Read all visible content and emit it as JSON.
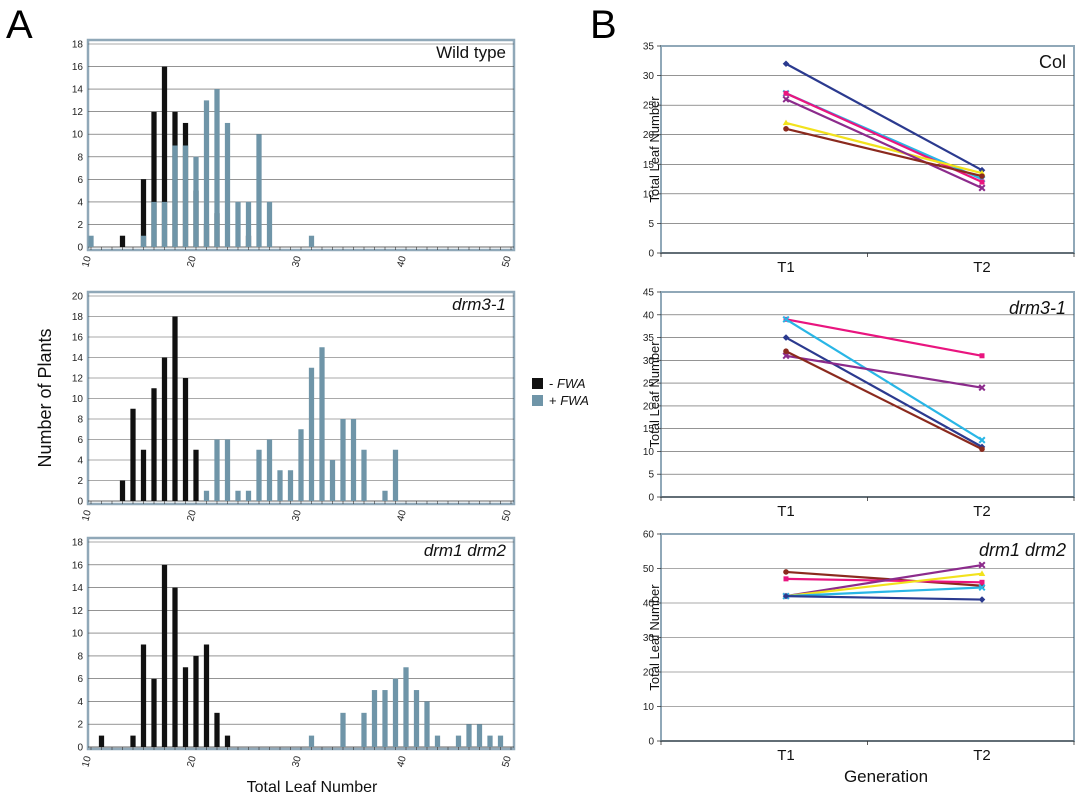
{
  "labels": {
    "panel_a": "A",
    "panel_b": "B",
    "a_ylabel": "Number of Plants",
    "a_xlabel": "Total Leaf Number",
    "b_ylabel": "Total Leaf Number",
    "b_xlabel": "Generation"
  },
  "legend": [
    {
      "sign": "- ",
      "text": "FWA",
      "color": "#111111"
    },
    {
      "sign": "+ ",
      "text": "FWA",
      "color": "#6f95a8"
    }
  ],
  "colors": {
    "minus_fwa": "#111111",
    "plus_fwa": "#6f95a8",
    "frame": "#90a8b8",
    "grid": "#555555"
  },
  "chart_data": [
    {
      "type": "bar",
      "title": "Wild type",
      "title_italic": false,
      "xlim": [
        10,
        50
      ],
      "xticks": [
        10,
        20,
        30,
        40,
        50
      ],
      "ylim": [
        0,
        18
      ],
      "yticks": [
        0,
        2,
        4,
        6,
        8,
        10,
        12,
        14,
        16,
        18
      ],
      "series": [
        {
          "name": "- FWA",
          "color": "#111111",
          "x": [
            13,
            15,
            16,
            17,
            18,
            19,
            20,
            21,
            22,
            25
          ],
          "values": [
            1,
            6,
            12,
            16,
            12,
            11,
            5,
            2,
            3,
            1
          ]
        },
        {
          "name": "+ FWA",
          "color": "#6f95a8",
          "x": [
            10,
            15,
            16,
            17,
            18,
            19,
            20,
            21,
            22,
            23,
            24,
            25,
            26,
            27,
            31
          ],
          "values": [
            1,
            1,
            4,
            4,
            9,
            9,
            8,
            13,
            14,
            11,
            4,
            4,
            10,
            4,
            1
          ]
        }
      ]
    },
    {
      "type": "bar",
      "title": "drm3-1",
      "title_italic": true,
      "xlim": [
        10,
        50
      ],
      "xticks": [
        10,
        20,
        30,
        40,
        50
      ],
      "ylim": [
        0,
        20
      ],
      "yticks": [
        0,
        2,
        4,
        6,
        8,
        10,
        12,
        14,
        16,
        18,
        20
      ],
      "series": [
        {
          "name": "- FWA",
          "color": "#111111",
          "x": [
            13,
            14,
            15,
            16,
            17,
            18,
            19,
            20
          ],
          "values": [
            2,
            9,
            5,
            11,
            14,
            18,
            12,
            5
          ]
        },
        {
          "name": "+ FWA",
          "color": "#6f95a8",
          "x": [
            21,
            22,
            23,
            24,
            25,
            26,
            27,
            28,
            29,
            30,
            31,
            32,
            33,
            34,
            35,
            36,
            37,
            38,
            39
          ],
          "values": [
            1,
            6,
            6,
            1,
            1,
            5,
            6,
            3,
            3,
            7,
            13,
            15,
            4,
            8,
            8,
            5,
            0,
            1,
            5
          ]
        }
      ]
    },
    {
      "type": "bar",
      "title": "drm1 drm2",
      "title_italic": true,
      "xlim": [
        10,
        50
      ],
      "xticks": [
        10,
        20,
        30,
        40,
        50
      ],
      "ylim": [
        0,
        18
      ],
      "yticks": [
        0,
        2,
        4,
        6,
        8,
        10,
        12,
        14,
        16,
        18
      ],
      "series": [
        {
          "name": "- FWA",
          "color": "#111111",
          "x": [
            11,
            14,
            15,
            16,
            17,
            18,
            19,
            20,
            21,
            22,
            23
          ],
          "values": [
            1,
            1,
            9,
            6,
            16,
            14,
            7,
            8,
            9,
            3,
            1
          ]
        },
        {
          "name": "+ FWA",
          "color": "#6f95a8",
          "x": [
            31,
            34,
            36,
            37,
            38,
            39,
            40,
            41,
            42,
            43,
            45,
            46,
            47,
            48,
            49
          ],
          "values": [
            1,
            3,
            3,
            5,
            5,
            6,
            7,
            5,
            4,
            1,
            1,
            2,
            2,
            1,
            1
          ]
        }
      ]
    },
    {
      "type": "line",
      "title": "Col",
      "title_italic": false,
      "categories": [
        "T1",
        "T2"
      ],
      "ylim": [
        0,
        35
      ],
      "yticks": [
        0,
        5,
        10,
        15,
        20,
        25,
        30,
        35
      ],
      "series": [
        {
          "color": "#2b3a8f",
          "marker": "diamond",
          "values": [
            32,
            14
          ]
        },
        {
          "color": "#29b6e6",
          "marker": "x",
          "values": [
            27,
            12.5
          ]
        },
        {
          "color": "#e9157f",
          "marker": "square",
          "values": [
            27,
            12
          ]
        },
        {
          "color": "#f2e21c",
          "marker": "triangle",
          "values": [
            22,
            13.5
          ]
        },
        {
          "color": "#8c2b8c",
          "marker": "x",
          "values": [
            26,
            11
          ]
        },
        {
          "color": "#8b2a1e",
          "marker": "circle",
          "values": [
            21,
            13
          ]
        }
      ]
    },
    {
      "type": "line",
      "title": "drm3-1",
      "title_italic": true,
      "categories": [
        "T1",
        "T2"
      ],
      "ylim": [
        0,
        45
      ],
      "yticks": [
        0,
        5,
        10,
        15,
        20,
        25,
        30,
        35,
        40,
        45
      ],
      "series": [
        {
          "color": "#e9157f",
          "marker": "square",
          "values": [
            39,
            31
          ]
        },
        {
          "color": "#29b6e6",
          "marker": "x",
          "values": [
            39,
            12.5
          ]
        },
        {
          "color": "#2b3a8f",
          "marker": "diamond",
          "values": [
            35,
            11
          ]
        },
        {
          "color": "#8c2b8c",
          "marker": "x",
          "values": [
            31,
            24
          ]
        },
        {
          "color": "#8b2a1e",
          "marker": "circle",
          "values": [
            32,
            10.5
          ]
        }
      ]
    },
    {
      "type": "line",
      "title": "drm1 drm2",
      "title_italic": true,
      "categories": [
        "T1",
        "T2"
      ],
      "ylim": [
        0,
        60
      ],
      "yticks": [
        0,
        10,
        20,
        30,
        40,
        50,
        60
      ],
      "series": [
        {
          "color": "#8b2a1e",
          "marker": "circle",
          "values": [
            49,
            45
          ]
        },
        {
          "color": "#e9157f",
          "marker": "square",
          "values": [
            47,
            46
          ]
        },
        {
          "color": "#8c2b8c",
          "marker": "x",
          "values": [
            42,
            51
          ]
        },
        {
          "color": "#f2e21c",
          "marker": "triangle",
          "values": [
            42,
            48.5
          ]
        },
        {
          "color": "#29b6e6",
          "marker": "x",
          "values": [
            42,
            44.5
          ]
        },
        {
          "color": "#2b3a8f",
          "marker": "diamond",
          "values": [
            42,
            41
          ]
        }
      ]
    }
  ]
}
